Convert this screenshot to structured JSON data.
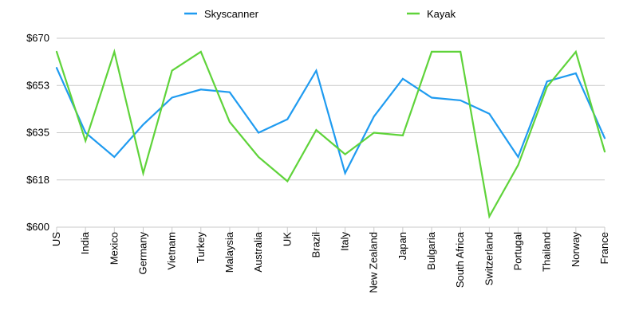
{
  "chart_data": {
    "type": "line",
    "categories": [
      "US",
      "India",
      "Mexico",
      "Germany",
      "Vietnam",
      "Turkey",
      "Malaysia",
      "Australia",
      "UK",
      "Brazil",
      "Italy",
      "New Zealand",
      "Japan",
      "Bulgaria",
      "South Africa",
      "Switzerland",
      "Portugal",
      "Thailand",
      "Norway",
      "France"
    ],
    "series": [
      {
        "name": "Skyscanner",
        "color": "#1f9bf0",
        "values": [
          659,
          635,
          626,
          638,
          648,
          651,
          650,
          635,
          640,
          658,
          620,
          641,
          655,
          648,
          647,
          642,
          626,
          654,
          657,
          633
        ]
      },
      {
        "name": "Kayak",
        "color": "#5fd33a",
        "values": [
          665,
          632,
          665,
          620,
          658,
          665,
          639,
          626,
          617,
          636,
          627,
          635,
          634,
          665,
          665,
          604,
          623,
          652,
          665,
          628
        ]
      }
    ],
    "yticks": [
      "$600",
      "$618",
      "$635",
      "$653",
      "$670"
    ],
    "ylim": [
      600,
      670
    ],
    "grid": true,
    "legend_position": "top-center"
  }
}
